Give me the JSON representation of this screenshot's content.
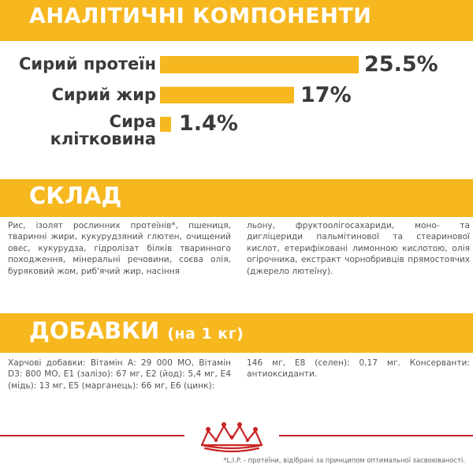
{
  "sections": {
    "analytics_title": "АНАЛІТИЧНІ КОМПОНЕНТИ",
    "composition_title": "СКЛАД",
    "additives_title": "ДОБАВКИ",
    "additives_subtitle": "(на 1 кг)"
  },
  "analytics": [
    {
      "label": "Сирий протеїн",
      "value": "25.5%",
      "amount": 25.5
    },
    {
      "label": "Сирий жир",
      "value": "17%",
      "amount": 17
    },
    {
      "label_line1": "Сира",
      "label_line2": "клітковина",
      "value": "1.4%",
      "amount": 1.4
    }
  ],
  "composition": {
    "col1": "Рис, ізолят рослинних протеїнів*, пшениця, тваринні жири, кукурудзяний глютен, очищений овес, кукурудза, гідролізат білків тваринного походження, мінеральні речовини, соєва олія, буряковий жом, риб'ячий жир, насіння",
    "col2": "льону, фруктоолігосахариди, моно- та дигліцериди пальмітинової та стеаринової кислот, етерифіковані лимонною кислотою, олія огірочника, екстракт чорнобривців прямостоячих (джерело лютеїну)."
  },
  "additives": {
    "col1": "Харчові добавки: Вітамін А: 29 000 МО, Вітамін D3: 800 МО, Е1 (залізо): 67 мг, Е2 (йод): 5,4 мг, Е4 (мідь): 13 мг, Е5 (марганець): 66 мг, Е6 (цинк):",
    "col2": "146 мг, Е8 (селен): 0,17 мг. Консерванти: антиоксиданти."
  },
  "footnote": "*L.I.P. - протеїни, відібрані за принципом оптимальної засвоюваності.",
  "brand": {
    "logo": "royal-canin-crown-logo",
    "accent": "#f6b71f",
    "line_color": "#c92424"
  }
}
